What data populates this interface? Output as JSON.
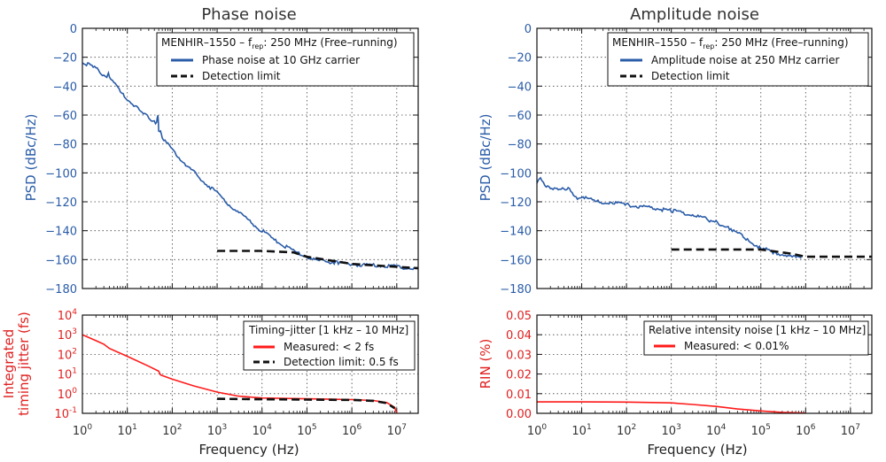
{
  "left_column": {
    "title": "Phase noise",
    "psd_ylabel": "PSD (dBc/Hz)",
    "jitter_ylabel_line1": "Integrated",
    "jitter_ylabel_line2": "timing jitter (fs)",
    "xlabel": "Frequency (Hz)",
    "legend_top": {
      "header_prefix": "MENHIR–1550 – f",
      "header_sub": "rep",
      "header_suffix": ": 250 MHz (Free–running)",
      "series1": "Phase noise at 10 GHz carrier",
      "series2": "Detection limit"
    },
    "legend_bottom": {
      "header": "Timing–jitter [1 kHz – 10 MHz]",
      "series1": "Measured: < 2 fs",
      "series2": "Detection limit: 0.5 fs"
    }
  },
  "right_column": {
    "title": "Amplitude noise",
    "psd_ylabel": "PSD (dBc/Hz)",
    "rin_ylabel": "RIN (%)",
    "xlabel": "Frequency (Hz)",
    "legend_top": {
      "header_prefix": "MENHIR–1550 – f",
      "header_sub": "rep",
      "header_suffix": ": 250 MHz (Free–running)",
      "series1": "Amplitude noise at 250 MHz carrier",
      "series2": "Detection limit"
    },
    "legend_bottom": {
      "header": "Relative intensity noise [1 kHz – 10 MHz]",
      "series1": "Measured: < 0.01%"
    }
  },
  "colors": {
    "blue": "#2a5ca8",
    "red": "#ff1a1a",
    "black": "#111111"
  },
  "chart_data": [
    {
      "type": "line",
      "title": "Phase noise",
      "xlabel": "",
      "ylabel": "PSD (dBc/Hz)",
      "xscale": "log",
      "xlim": [
        1,
        30000000
      ],
      "ylim": [
        -180,
        0
      ],
      "yticks": [
        0,
        -20,
        -40,
        -60,
        -80,
        -100,
        -120,
        -140,
        -160,
        -180
      ],
      "grid": true,
      "legend": "top-right",
      "series": [
        {
          "name": "Phase noise at 10 GHz carrier",
          "color": "#2a5ca8",
          "x": [
            1,
            2,
            3,
            3.5,
            3.8,
            4.2,
            5,
            7,
            10,
            15,
            20,
            30,
            40,
            45,
            48,
            50,
            55,
            60,
            80,
            100,
            200,
            500,
            1000,
            2000,
            5000,
            10000,
            20000,
            50000,
            100000,
            200000,
            500000,
            1000000,
            2000000,
            5000000,
            10000000,
            20000000,
            30000000
          ],
          "y": [
            -23,
            -28,
            -32,
            -33,
            -30,
            -35,
            -38,
            -44,
            -49,
            -54,
            -58,
            -62,
            -64,
            -66,
            -60,
            -70,
            -72,
            -77,
            -80,
            -84,
            -94,
            -106,
            -114,
            -123,
            -133,
            -140,
            -147,
            -154,
            -158,
            -161,
            -162,
            -163,
            -164,
            -164,
            -165,
            -166,
            -166
          ]
        },
        {
          "name": "Detection limit",
          "color": "#111111",
          "dashed": true,
          "x": [
            1000,
            10000,
            50000,
            100000,
            1000000,
            10000000,
            30000000
          ],
          "y": [
            -154,
            -154,
            -155,
            -158,
            -163,
            -165,
            -166
          ]
        }
      ]
    },
    {
      "type": "line",
      "title": "",
      "xlabel": "Frequency (Hz)",
      "ylabel": "Integrated timing jitter (fs)",
      "xscale": "log",
      "yscale": "log",
      "xlim": [
        1,
        30000000
      ],
      "ylim": [
        0.1,
        10000
      ],
      "grid": true,
      "legend": "top-right",
      "series": [
        {
          "name": "Measured: < 2 fs",
          "color": "#ff1a1a",
          "x": [
            1,
            2,
            3,
            4,
            10,
            30,
            50,
            55,
            100,
            300,
            1000,
            3000,
            10000,
            100000,
            1000000,
            3000000,
            6000000,
            9000000,
            10000000
          ],
          "y": [
            1000,
            500,
            330,
            200,
            80,
            25,
            14,
            9,
            5.5,
            2.5,
            1.2,
            0.75,
            0.6,
            0.55,
            0.5,
            0.45,
            0.35,
            0.2,
            0.1
          ]
        },
        {
          "name": "Detection limit: 0.5 fs",
          "color": "#111111",
          "dashed": true,
          "x": [
            1000,
            10000,
            100000,
            1000000,
            3000000,
            6000000,
            9000000
          ],
          "y": [
            0.55,
            0.52,
            0.5,
            0.48,
            0.43,
            0.33,
            0.18
          ]
        }
      ]
    },
    {
      "type": "line",
      "title": "Amplitude noise",
      "xlabel": "",
      "ylabel": "PSD (dBc/Hz)",
      "xscale": "log",
      "xlim": [
        1,
        30000000
      ],
      "ylim": [
        -180,
        0
      ],
      "yticks": [
        0,
        -20,
        -40,
        -60,
        -80,
        -100,
        -120,
        -140,
        -160,
        -180
      ],
      "grid": true,
      "legend": "top-right",
      "series": [
        {
          "name": "Amplitude noise at 250 MHz carrier",
          "color": "#2a5ca8",
          "x": [
            1,
            1.2,
            1.5,
            2,
            3,
            5,
            8,
            10,
            20,
            50,
            100,
            300,
            1000,
            3000,
            10000,
            20000,
            50000,
            100000,
            200000,
            500000,
            800000
          ],
          "y": [
            -108,
            -103,
            -108,
            -110,
            -112,
            -111,
            -117,
            -116,
            -120,
            -121,
            -122,
            -124,
            -126,
            -129,
            -134,
            -138,
            -146,
            -152,
            -155,
            -158,
            -159
          ]
        },
        {
          "name": "Detection limit",
          "color": "#111111",
          "dashed": true,
          "x": [
            1000,
            100000,
            500000,
            1000000,
            30000000
          ],
          "y": [
            -153,
            -153,
            -156,
            -158,
            -158
          ]
        }
      ]
    },
    {
      "type": "line",
      "title": "",
      "xlabel": "Frequency (Hz)",
      "ylabel": "RIN (%)",
      "xscale": "log",
      "xlim": [
        1,
        30000000
      ],
      "ylim": [
        0,
        0.05
      ],
      "yticks": [
        0.05,
        0.04,
        0.03,
        0.02,
        0.01,
        0.0
      ],
      "grid": true,
      "legend": "top-right",
      "series": [
        {
          "name": "Measured: < 0.01%",
          "color": "#ff1a1a",
          "x": [
            1,
            10,
            100,
            1000,
            3000,
            10000,
            30000,
            100000,
            300000,
            1000000
          ],
          "y": [
            0.0058,
            0.0058,
            0.0057,
            0.0053,
            0.0045,
            0.0035,
            0.0022,
            0.0012,
            0.0005,
            0.0001
          ]
        }
      ]
    }
  ]
}
